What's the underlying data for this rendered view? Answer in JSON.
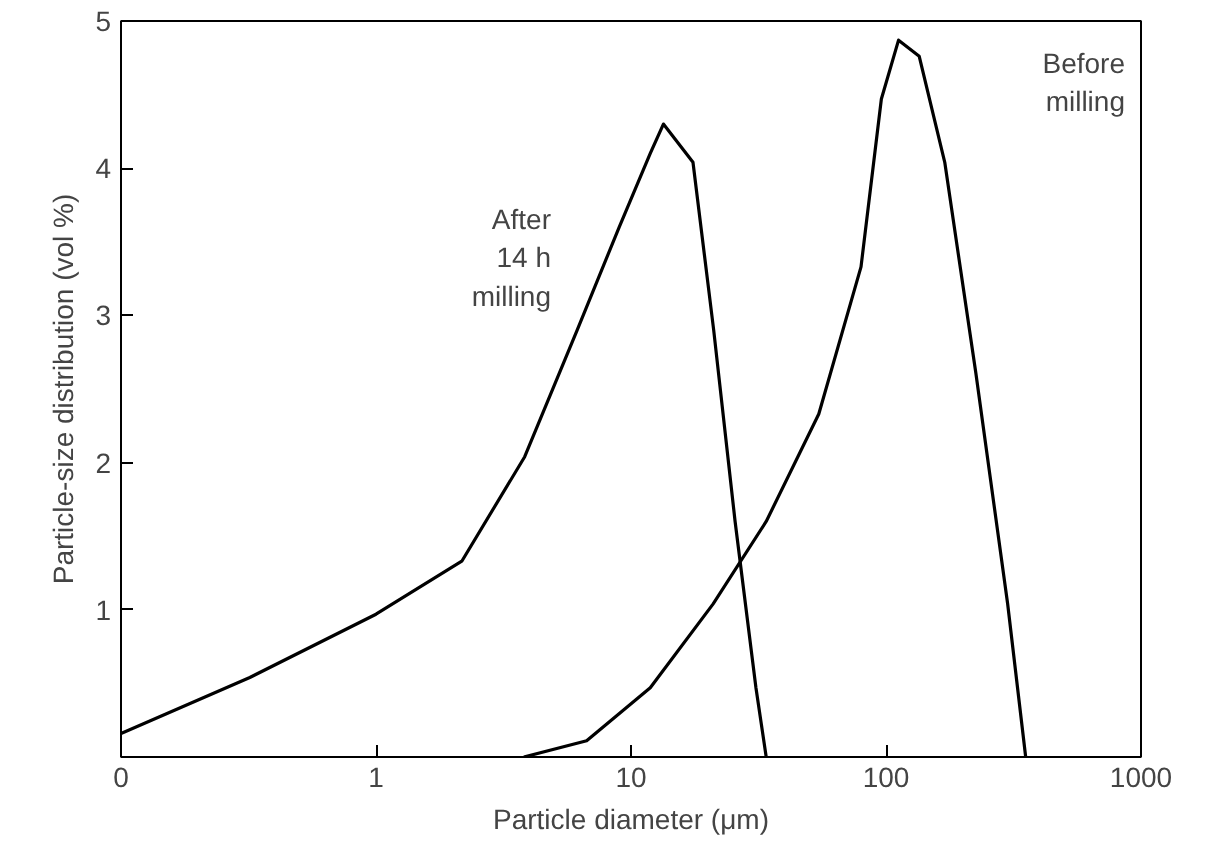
{
  "chart_data": {
    "type": "line",
    "xlabel": "Particle diameter (μm)",
    "ylabel": "Particle-size distribution (vol %)",
    "log": "x",
    "xlim": [
      0.1,
      1000
    ],
    "xticks": [
      {
        "value": 0.1,
        "label": "0"
      },
      1,
      10,
      100,
      1000
    ],
    "ylim": [
      0,
      5
    ],
    "yticks": [
      1,
      2,
      3,
      4,
      5
    ],
    "grid": false,
    "marker": "none",
    "line_style": "solid",
    "series": [
      {
        "color": "#000000",
        "x": [
          0.1,
          0.32,
          1,
          2.17,
          3.83,
          6.15,
          8.99,
          11.9,
          13.4,
          17.5,
          21.1,
          25.6,
          30.9,
          33.9
        ],
        "values": [
          0.16,
          0.54,
          0.97,
          1.33,
          2.04,
          2.9,
          3.6,
          4.1,
          4.3,
          4.04,
          2.9,
          1.6,
          0.47,
          0
        ]
      },
      {
        "color": "#000000",
        "x": [
          3.8,
          6.7,
          11.9,
          21,
          33.9,
          54.5,
          79.8,
          95.9,
          112,
          135,
          170,
          225,
          300,
          353
        ],
        "values": [
          0,
          0.11,
          0.47,
          1.04,
          1.6,
          2.33,
          3.33,
          4.47,
          4.87,
          4.76,
          4.04,
          2.61,
          1.04,
          0
        ]
      }
    ],
    "annotations": [
      "After\n14 h\nmilling",
      "Before\nmilling"
    ]
  }
}
